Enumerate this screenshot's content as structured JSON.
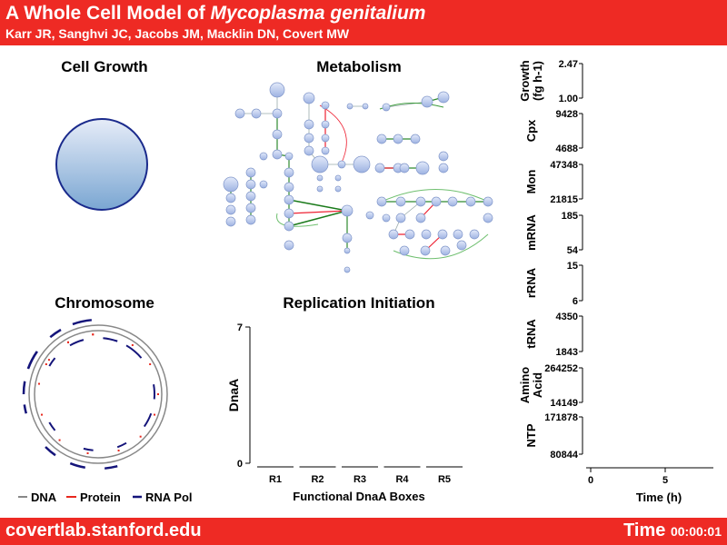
{
  "header": {
    "title_prefix": "A Whole Cell Model of ",
    "title_species": "Mycoplasma genitalium",
    "authors": "Karr JR, Sanghvi JC, Jacobs JM, Macklin DN, Covert MW"
  },
  "footer": {
    "url": "covertlab.stanford.edu",
    "time_label": "Time",
    "time_value": "00:00:01"
  },
  "panels": {
    "cell_growth": "Cell Growth",
    "metabolism": "Metabolism",
    "chromosome": "Chromosome",
    "replication": "Replication Initiation"
  },
  "chromosome_legend": {
    "dna": "DNA",
    "protein": "Protein",
    "rna_pol": "RNA Pol"
  },
  "colors": {
    "header_red": "#ee2a24",
    "dna": "#888888",
    "protein": "#e8281e",
    "rna_pol": "#14147a",
    "node_fill": "#b9c8ea"
  },
  "chart_data": [
    {
      "type": "bar",
      "title": "Replication Initiation",
      "xlabel": "Functional DnaA Boxes",
      "ylabel": "DnaA",
      "categories": [
        "R1",
        "R2",
        "R3",
        "R4",
        "R5"
      ],
      "values": [
        0,
        0,
        0,
        0,
        0
      ],
      "ylim": [
        0,
        7
      ],
      "ytick_labels": [
        "0",
        "7"
      ]
    },
    {
      "type": "line",
      "xlabel": "Time (h)",
      "xtick_labels": [
        "0",
        "5"
      ],
      "panels": [
        {
          "label": "Growth (fg h-1)",
          "label_lines": [
            "Growth",
            "(fg h-1)"
          ],
          "ymax": "2.47",
          "ymin": "1.00"
        },
        {
          "label": "Cpx",
          "label_lines": [
            "Cpx"
          ],
          "ymax": "9428",
          "ymin": "4688"
        },
        {
          "label": "Mon",
          "label_lines": [
            "Mon"
          ],
          "ymax": "47348",
          "ymin": "21815"
        },
        {
          "label": "mRNA",
          "label_lines": [
            "mRNA"
          ],
          "ymax": "185",
          "ymin": "54"
        },
        {
          "label": "rRNA",
          "label_lines": [
            "rRNA"
          ],
          "ymax": "15",
          "ymin": "6"
        },
        {
          "label": "tRNA",
          "label_lines": [
            "tRNA"
          ],
          "ymax": "4350",
          "ymin": "1843"
        },
        {
          "label": "Amino Acid",
          "label_lines": [
            "Amino",
            "Acid"
          ],
          "ymax": "264252",
          "ymin": "14149"
        },
        {
          "label": "NTP",
          "label_lines": [
            "NTP"
          ],
          "ymax": "171878",
          "ymin": "80844"
        }
      ]
    }
  ]
}
